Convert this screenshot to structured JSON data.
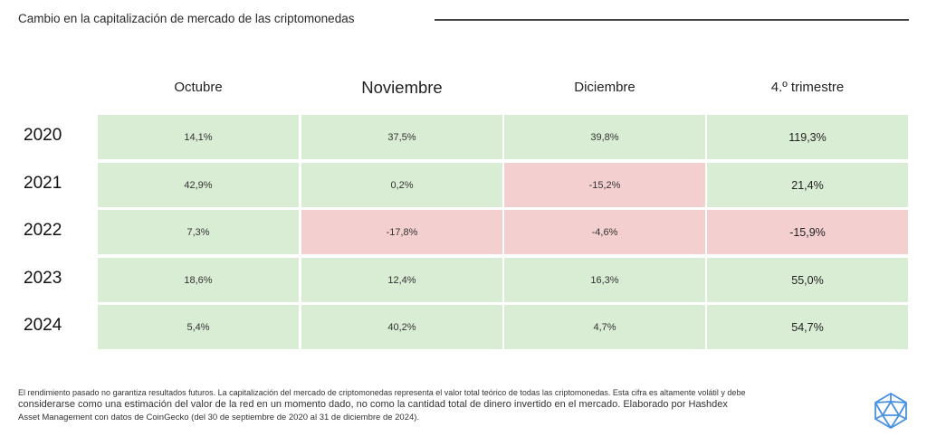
{
  "title": "Cambio en la capitalización de mercado de las criptomonedas",
  "colors": {
    "positive": "#d9ecd4",
    "negative": "#f4cfcf",
    "logo": "#4a90e2"
  },
  "chart_data": {
    "type": "table",
    "columns": [
      "Octubre",
      "Noviembre",
      "Diciembre",
      "4.º trimestre"
    ],
    "rows": [
      "2020",
      "2021",
      "2022",
      "2023",
      "2024"
    ],
    "cells": [
      [
        "14,1%",
        "37,5%",
        "39,8%",
        "119,3%"
      ],
      [
        "42,9%",
        "0,2%",
        "-15,2%",
        "21,4%"
      ],
      [
        "7,3%",
        "-17,8%",
        "-4,6%",
        "-15,9%"
      ],
      [
        "18,6%",
        "12,4%",
        "16,3%",
        "55,0%"
      ],
      [
        "5,4%",
        "40,2%",
        "4,7%",
        "54,7%"
      ]
    ],
    "values": [
      [
        14.1,
        37.5,
        39.8,
        119.3
      ],
      [
        42.9,
        0.2,
        -15.2,
        21.4
      ],
      [
        7.3,
        -17.8,
        -4.6,
        -15.9
      ],
      [
        18.6,
        12.4,
        16.3,
        55.0
      ],
      [
        5.4,
        40.2,
        4.7,
        54.7
      ]
    ]
  },
  "footnote": {
    "line1": "El rendimiento pasado no garantiza resultados futuros. La capitalización del mercado de criptomonedas representa el valor total teórico de todas las criptomonedas. Esta cifra es altamente volátil y debe",
    "line2": "considerarse como una estimación del valor de la red en un momento dado, no como la cantidad total de dinero invertido en el mercado. Elaborado por Hashdex",
    "line3": "Asset Management con datos de CoinGecko (del 30 de septiembre de 2020 al 31 de diciembre de 2024)."
  },
  "logo_icon": "hashdex-icosahedron-icon"
}
